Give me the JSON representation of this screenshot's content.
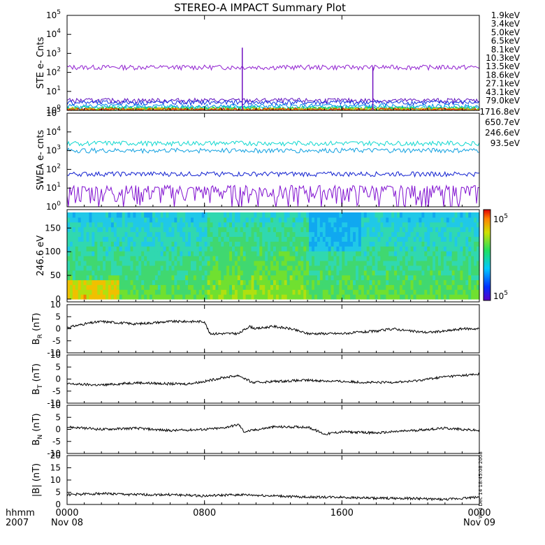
{
  "title": "STEREO-A IMPACT Summary Plot",
  "time_axis": {
    "row1_label": "hhmm",
    "row2_label": "2007",
    "ticks": [
      {
        "time": "0000",
        "date": "Nov 08",
        "hour": 0
      },
      {
        "time": "0800",
        "date": "",
        "hour": 8
      },
      {
        "time": "1600",
        "date": "",
        "hour": 16
      },
      {
        "time": "0000",
        "date": "Nov 09",
        "hour": 24
      }
    ]
  },
  "side_stamp": "Wed Dec 14 18:45:08 2008",
  "chart_data": [
    {
      "type": "line",
      "id": "ste",
      "ylabel": "STE e- Cnts",
      "yscale": "log",
      "ylim": [
        1,
        100000
      ],
      "yticks": [
        {
          "value": 1,
          "base": "10",
          "exp": "0"
        },
        {
          "value": 10,
          "base": "10",
          "exp": "1"
        },
        {
          "value": 100,
          "base": "10",
          "exp": "2"
        },
        {
          "value": 1000,
          "base": "10",
          "exp": "3"
        },
        {
          "value": 10000,
          "base": "10",
          "exp": "4"
        },
        {
          "value": 100000,
          "base": "10",
          "exp": "5"
        }
      ],
      "legend_position": "right",
      "series": [
        {
          "name": "1.9keV",
          "color": "#9020d0",
          "level": 180
        },
        {
          "name": "3.4keV",
          "color": "#6010c0",
          "level": 3.2
        },
        {
          "name": "5.0keV",
          "color": "#1030e0",
          "level": 2.5
        },
        {
          "name": "6.5keV",
          "color": "#0090e8",
          "level": 1.6
        },
        {
          "name": "8.1keV",
          "color": "#00c8d8",
          "level": 1.3
        },
        {
          "name": "10.3keV",
          "color": "#00d080",
          "level": 1.2
        },
        {
          "name": "13.5keV",
          "color": "#40d020",
          "level": 1.1
        },
        {
          "name": "18.6keV",
          "color": "#a0d000",
          "level": 1.05
        },
        {
          "name": "27.1keV",
          "color": "#f0c000",
          "level": 1.0
        },
        {
          "name": "43.1keV",
          "color": "#f08000",
          "level": 1.0
        },
        {
          "name": "79.0keV",
          "color": "#e02000",
          "level": 1.0
        }
      ],
      "spikes": [
        {
          "hour": 10.2,
          "value": 2000
        },
        {
          "hour": 17.8,
          "value": 200
        }
      ]
    },
    {
      "type": "line",
      "id": "swea",
      "ylabel": "SWEA e- cnts",
      "yscale": "log",
      "ylim": [
        1,
        100000
      ],
      "yticks": [
        {
          "value": 1,
          "base": "10",
          "exp": "0"
        },
        {
          "value": 10,
          "base": "10",
          "exp": "1"
        },
        {
          "value": 100,
          "base": "10",
          "exp": "2"
        },
        {
          "value": 1000,
          "base": "10",
          "exp": "3"
        },
        {
          "value": 10000,
          "base": "10",
          "exp": "4"
        },
        {
          "value": 100000,
          "base": "10",
          "exp": "5"
        }
      ],
      "legend_position": "right",
      "series": [
        {
          "name": "1716.8eV",
          "color": "#8010d0",
          "level": 4
        },
        {
          "name": "650.7eV",
          "color": "#1020d0",
          "level": 55
        },
        {
          "name": "246.6eV",
          "color": "#10a0e0",
          "level": 1000
        },
        {
          "name": "93.5eV",
          "color": "#10d8d0",
          "level": 2400
        }
      ]
    },
    {
      "type": "heatmap",
      "id": "pad",
      "ylabel": "246.6 eV",
      "ylim": [
        0,
        180
      ],
      "yticks": [
        0,
        50,
        100,
        150
      ],
      "colorbar": {
        "top_label": "10",
        "top_exp": "5",
        "bottom_label": "10",
        "bottom_exp": "5"
      }
    },
    {
      "type": "line",
      "id": "br",
      "ylabel_main": "B",
      "ylabel_sub": "R",
      "ylabel_unit": "(nT)",
      "ylim": [
        -10,
        10
      ],
      "yticks": [
        -10,
        -5,
        0,
        5,
        10
      ],
      "segments": [
        {
          "hour": 0,
          "value": 0.5
        },
        {
          "hour": 1,
          "value": 2
        },
        {
          "hour": 2,
          "value": 3
        },
        {
          "hour": 3,
          "value": 2.5
        },
        {
          "hour": 4,
          "value": 2
        },
        {
          "hour": 5,
          "value": 2.5
        },
        {
          "hour": 6,
          "value": 3
        },
        {
          "hour": 7,
          "value": 3
        },
        {
          "hour": 8,
          "value": 3
        },
        {
          "hour": 8.3,
          "value": -2
        },
        {
          "hour": 9,
          "value": -2
        },
        {
          "hour": 10,
          "value": -2
        },
        {
          "hour": 10.6,
          "value": 1
        },
        {
          "hour": 11,
          "value": 0
        },
        {
          "hour": 12,
          "value": 1
        },
        {
          "hour": 13,
          "value": 0
        },
        {
          "hour": 14,
          "value": -2
        },
        {
          "hour": 15,
          "value": -2
        },
        {
          "hour": 16,
          "value": -2
        },
        {
          "hour": 17,
          "value": -1.5
        },
        {
          "hour": 18,
          "value": -1
        },
        {
          "hour": 19,
          "value": 0
        },
        {
          "hour": 20,
          "value": -1
        },
        {
          "hour": 21,
          "value": -1.5
        },
        {
          "hour": 22,
          "value": -1
        },
        {
          "hour": 23,
          "value": 0
        },
        {
          "hour": 24,
          "value": 0
        }
      ]
    },
    {
      "type": "line",
      "id": "bt",
      "ylabel_main": "B",
      "ylabel_sub": "T",
      "ylabel_unit": "(nT)",
      "ylim": [
        -10,
        10
      ],
      "yticks": [
        -10,
        -5,
        0,
        5,
        10
      ],
      "segments": [
        {
          "hour": 0,
          "value": -2
        },
        {
          "hour": 2,
          "value": -2.5
        },
        {
          "hour": 4,
          "value": -1.5
        },
        {
          "hour": 6,
          "value": -2
        },
        {
          "hour": 7,
          "value": -2
        },
        {
          "hour": 8,
          "value": -1
        },
        {
          "hour": 9,
          "value": 0.5
        },
        {
          "hour": 10,
          "value": 1.5
        },
        {
          "hour": 10.8,
          "value": -1.5
        },
        {
          "hour": 12,
          "value": -1
        },
        {
          "hour": 14,
          "value": -0.5
        },
        {
          "hour": 16,
          "value": -1
        },
        {
          "hour": 18,
          "value": -1.5
        },
        {
          "hour": 20,
          "value": -1
        },
        {
          "hour": 22,
          "value": 1
        },
        {
          "hour": 24,
          "value": 2
        }
      ]
    },
    {
      "type": "line",
      "id": "bn",
      "ylabel_main": "B",
      "ylabel_sub": "N",
      "ylabel_unit": "(nT)",
      "ylim": [
        -10,
        10
      ],
      "yticks": [
        -10,
        -5,
        0,
        5,
        10
      ],
      "segments": [
        {
          "hour": 0,
          "value": 1
        },
        {
          "hour": 2,
          "value": 0
        },
        {
          "hour": 4,
          "value": 0.5
        },
        {
          "hour": 6,
          "value": -0.5
        },
        {
          "hour": 8,
          "value": 0
        },
        {
          "hour": 9,
          "value": 0.5
        },
        {
          "hour": 10,
          "value": 2
        },
        {
          "hour": 10.3,
          "value": -1
        },
        {
          "hour": 12,
          "value": 1
        },
        {
          "hour": 14,
          "value": 1
        },
        {
          "hour": 15,
          "value": -2
        },
        {
          "hour": 16,
          "value": -1
        },
        {
          "hour": 18,
          "value": -1.5
        },
        {
          "hour": 20,
          "value": -0.5
        },
        {
          "hour": 22,
          "value": 0.5
        },
        {
          "hour": 24,
          "value": -0.5
        }
      ]
    },
    {
      "type": "line",
      "id": "bmag",
      "ylabel": "|B| (nT)",
      "ylim": [
        0,
        20
      ],
      "yticks": [
        0,
        5,
        10,
        15,
        20
      ],
      "segments": [
        {
          "hour": 0,
          "value": 4
        },
        {
          "hour": 2,
          "value": 4.5
        },
        {
          "hour": 4,
          "value": 4
        },
        {
          "hour": 6,
          "value": 4
        },
        {
          "hour": 8,
          "value": 3.5
        },
        {
          "hour": 10,
          "value": 4
        },
        {
          "hour": 12,
          "value": 3.5
        },
        {
          "hour": 14,
          "value": 3
        },
        {
          "hour": 16,
          "value": 3
        },
        {
          "hour": 18,
          "value": 2.5
        },
        {
          "hour": 20,
          "value": 2.5
        },
        {
          "hour": 22,
          "value": 2
        },
        {
          "hour": 24,
          "value": 3
        }
      ]
    }
  ]
}
